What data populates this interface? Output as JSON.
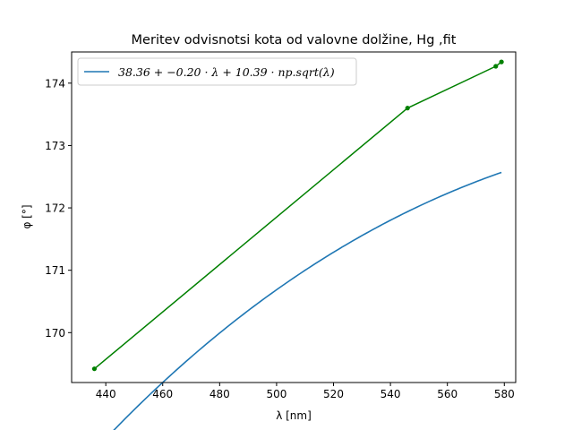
{
  "chart_data": {
    "type": "line",
    "title": "Meritev odvisnotsi kota od valovne dolžine, Hg ,fit",
    "xlabel": "λ [nm]",
    "ylabel": "φ [°]",
    "xlim": [
      428,
      584
    ],
    "ylim": [
      169.2,
      174.5
    ],
    "xticks": [
      440,
      460,
      480,
      500,
      520,
      540,
      560,
      580
    ],
    "yticks": [
      170,
      171,
      172,
      173,
      174
    ],
    "legend": {
      "position": "top-left",
      "label": "38.36 + −0.20 · λ + 10.39 · np.sqrt(λ)"
    },
    "colors": {
      "fit": "#1f77b4",
      "data": "#008000"
    },
    "series": [
      {
        "name": "38.36 + −0.20 · λ + 10.39 · np.sqrt(λ)",
        "kind": "fit-curve",
        "coefficients": {
          "a": 38.36,
          "b": -0.2,
          "c": 10.39
        },
        "x_range": [
          436,
          579
        ]
      },
      {
        "kind": "data",
        "x": [
          436,
          546,
          577,
          579
        ],
        "y": [
          169.42,
          173.6,
          174.27,
          174.34
        ]
      }
    ]
  }
}
